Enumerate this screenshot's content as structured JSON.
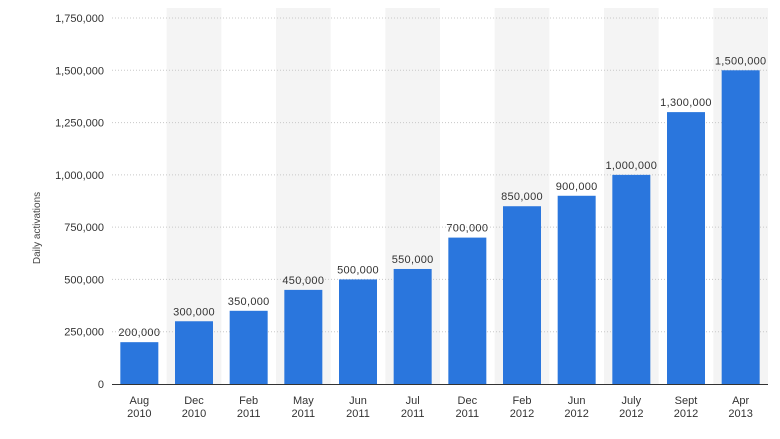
{
  "chart_data": {
    "type": "bar",
    "ylabel": "Daily activations",
    "xlabel": "",
    "ylim": [
      0,
      1750000
    ],
    "yticks": [
      0,
      250000,
      500000,
      750000,
      1000000,
      1250000,
      1500000,
      1750000
    ],
    "ytick_labels": [
      "0",
      "250,000",
      "500,000",
      "750,000",
      "1,000,000",
      "1,250,000",
      "1,500,000",
      "1,750,000"
    ],
    "grid": "horizontal dotted",
    "categories": [
      [
        "Aug",
        "2010"
      ],
      [
        "Dec",
        "2010"
      ],
      [
        "Feb",
        "2011"
      ],
      [
        "May",
        "2011"
      ],
      [
        "Jun",
        "2011"
      ],
      [
        "Jul",
        "2011"
      ],
      [
        "Dec",
        "2011"
      ],
      [
        "Feb",
        "2012"
      ],
      [
        "Jun",
        "2012"
      ],
      [
        "July",
        "2012"
      ],
      [
        "Sept",
        "2012"
      ],
      [
        "Apr",
        "2013"
      ]
    ],
    "values": [
      200000,
      300000,
      350000,
      450000,
      500000,
      550000,
      700000,
      850000,
      900000,
      1000000,
      1300000,
      1500000
    ],
    "value_labels": [
      "200,000",
      "300,000",
      "350,000",
      "450,000",
      "500,000",
      "550,000",
      "700,000",
      "850,000",
      "900,000",
      "1,000,000",
      "1,300,000",
      "1,500,000"
    ],
    "colors": {
      "bar": "#2a76dd",
      "band": "#f4f4f4",
      "grid": "#c8c8c8",
      "axis": "#333333"
    }
  }
}
